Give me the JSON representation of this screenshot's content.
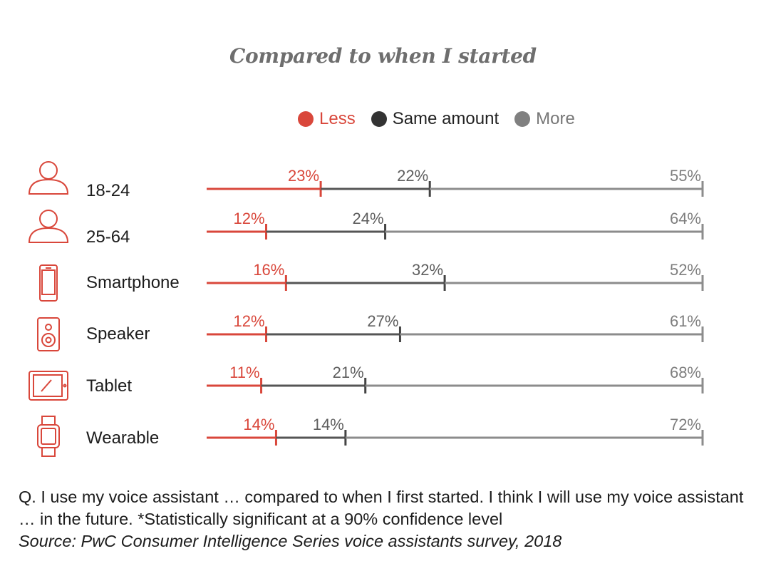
{
  "chart_data": {
    "type": "bar",
    "stacked": true,
    "orientation": "horizontal",
    "title": "Compared to when I started",
    "categories": [
      "18-24",
      "25-64",
      "Smartphone",
      "Speaker",
      "Tablet",
      "Wearable"
    ],
    "category_icons": [
      "person-icon",
      "person-icon",
      "smartphone-icon",
      "speaker-icon",
      "tablet-icon",
      "watch-icon"
    ],
    "series": [
      {
        "name": "Less",
        "color": "#d9473b",
        "values": [
          23,
          12,
          16,
          12,
          11,
          14
        ]
      },
      {
        "name": "Same amount",
        "color": "#333333",
        "values": [
          22,
          24,
          32,
          27,
          21,
          14
        ]
      },
      {
        "name": "More",
        "color": "#808080",
        "values": [
          55,
          64,
          52,
          61,
          68,
          72
        ]
      }
    ],
    "value_suffix": "%",
    "legend_position": "top",
    "xlim": [
      0,
      100
    ],
    "grid": false
  },
  "footnote": {
    "question": "Q. I use my voice assistant … compared to when I first started. I think I will use my voice assistant … in the future. *Statistically significant at a 90% confidence level",
    "source": "Source: PwC Consumer Intelligence Series voice assistants survey, 2018"
  }
}
